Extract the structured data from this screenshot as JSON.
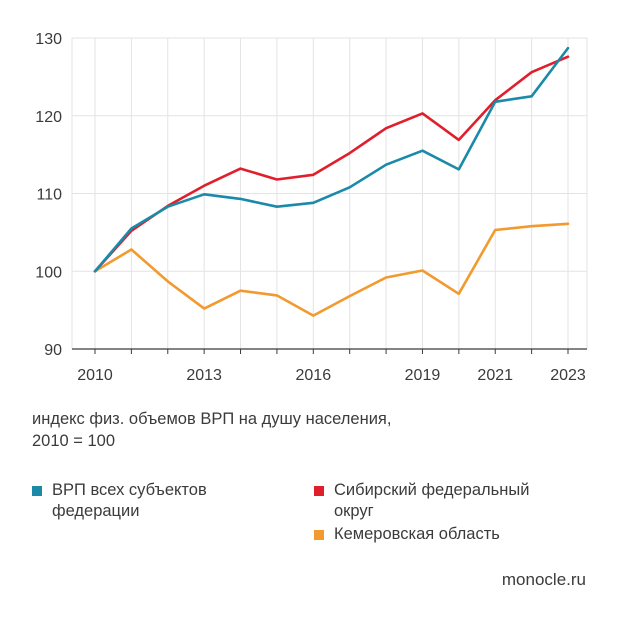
{
  "chart_data": {
    "type": "line",
    "x": [
      2010,
      2011,
      2012,
      2013,
      2014,
      2015,
      2016,
      2017,
      2018,
      2019,
      2020,
      2021,
      2022,
      2023
    ],
    "x_ticks": [
      2010,
      2013,
      2016,
      2019,
      2021,
      2023
    ],
    "ylim": [
      90,
      130
    ],
    "y_ticks": [
      90,
      100,
      110,
      120,
      130
    ],
    "grid": true,
    "series": [
      {
        "name": "ВРП всех субъектов федерации",
        "color": "#1a8aa8",
        "values": [
          100,
          105.5,
          108.3,
          109.9,
          109.3,
          108.3,
          108.8,
          110.8,
          113.7,
          115.5,
          113.1,
          121.8,
          122.5,
          128.7
        ]
      },
      {
        "name": "Сибирский федеральный округ",
        "color": "#e01f2d",
        "values": [
          100,
          105.2,
          108.4,
          111.0,
          113.2,
          111.8,
          112.4,
          115.2,
          118.4,
          120.3,
          116.9,
          122.0,
          125.6,
          127.6
        ]
      },
      {
        "name": "Кемеровская область",
        "color": "#f29a2e",
        "values": [
          100,
          102.8,
          98.7,
          95.2,
          97.5,
          96.9,
          94.3,
          96.8,
          99.2,
          100.1,
          97.1,
          105.3,
          105.8,
          106.1
        ]
      }
    ],
    "caption_line1": "индекс физ. объемов ВРП на душу населения,",
    "caption_line2": "2010 = 100"
  },
  "legend": {
    "item1_line1": "ВРП всех субъектов",
    "item1_line2": "федерации",
    "item2_line1": "Сибирский федеральный",
    "item2_line2": "округ",
    "item3_line1": "Кемеровская область"
  },
  "source": "monocle.ru"
}
